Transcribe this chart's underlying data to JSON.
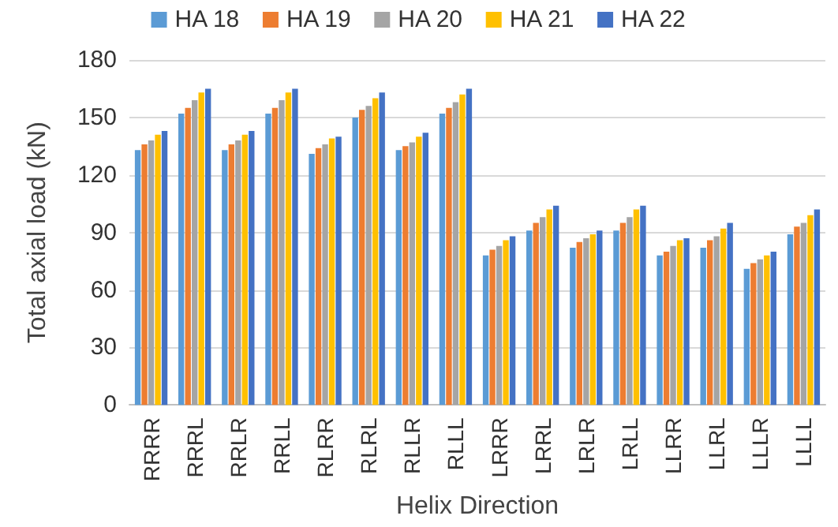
{
  "chart_data": {
    "type": "bar",
    "xlabel": "Helix Direction",
    "ylabel": "Total axial load (kN)",
    "categories": [
      "RRRR",
      "RRRL",
      "RRLR",
      "RRLL",
      "RLRR",
      "RLRL",
      "RLLR",
      "RLLL",
      "LRRR",
      "LRRL",
      "LRLR",
      "LRLL",
      "LLRR",
      "LLRL",
      "LLLR",
      "LLLL"
    ],
    "series": [
      {
        "name": "HA 18",
        "color": "#5b9bd5",
        "values": [
          133,
          152,
          133,
          152,
          131,
          150,
          133,
          152,
          78,
          91,
          82,
          91,
          78,
          82,
          71,
          89
        ]
      },
      {
        "name": "HA 19",
        "color": "#ed7d31",
        "values": [
          136,
          155,
          136,
          155,
          134,
          154,
          135,
          155,
          81,
          95,
          85,
          95,
          80,
          86,
          74,
          93
        ]
      },
      {
        "name": "HA 20",
        "color": "#a5a5a5",
        "values": [
          138,
          159,
          138,
          159,
          136,
          156,
          137,
          158,
          83,
          98,
          87,
          98,
          83,
          88,
          76,
          95
        ]
      },
      {
        "name": "HA 21",
        "color": "#ffc000",
        "values": [
          141,
          163,
          141,
          163,
          139,
          160,
          140,
          162,
          86,
          102,
          89,
          102,
          86,
          92,
          78,
          99
        ]
      },
      {
        "name": "HA 22",
        "color": "#4472c4",
        "values": [
          143,
          165,
          143,
          165,
          140,
          163,
          142,
          165,
          88,
          104,
          91,
          104,
          87,
          95,
          80,
          102
        ]
      }
    ],
    "ylim": [
      0,
      180
    ],
    "yticks": [
      0,
      30,
      60,
      90,
      120,
      150,
      180
    ],
    "grid": "y",
    "legend": "top"
  }
}
